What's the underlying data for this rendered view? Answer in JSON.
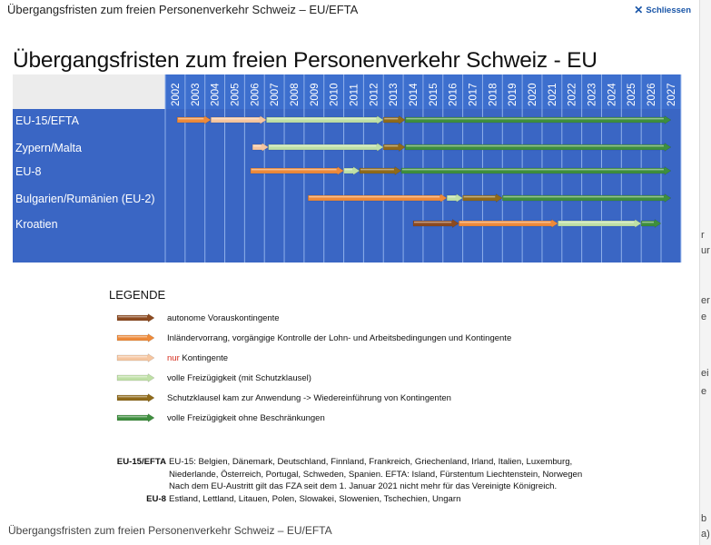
{
  "dialog": {
    "title": "Übergangsfristen zum freien Personenverkehr Schweiz – EU/EFTA",
    "close_label": "Schliessen",
    "caption": "Übergangsfristen zum freien Personenverkehr Schweiz – EU/EFTA"
  },
  "page_edge_texts": [
    "r",
    "ur",
    "er",
    "e",
    "ei",
    "e",
    "b",
    "a)"
  ],
  "chart": {
    "title": "Übergangsfristen zum freien Personenverkehr Schweiz - EU",
    "years": [
      "2002",
      "2003",
      "2004",
      "2005",
      "2006",
      "2007",
      "2008",
      "2009",
      "2010",
      "2011",
      "2012",
      "2013",
      "2014",
      "2015",
      "2016",
      "2017",
      "2018",
      "2019",
      "2020",
      "2021",
      "2022",
      "2023",
      "2024",
      "2025",
      "2026",
      "2027"
    ],
    "colors": {
      "header_blue": "#3d6fce",
      "body_blue": "#3a66c4",
      "header_gray": "#ececec",
      "gridline": "#8fb0ea",
      "brown": "#8c4a20",
      "orange": "#ee8a3a",
      "light_orange": "#f6c6a0",
      "light_green": "#bfe0a6",
      "olive": "#8f6a1a",
      "green": "#3e8e3e"
    }
  },
  "chart_data": {
    "type": "gantt",
    "title": "Übergangsfristen zum freien Personenverkehr Schweiz - EU",
    "x": [
      "2002",
      "2003",
      "2004",
      "2005",
      "2006",
      "2007",
      "2008",
      "2009",
      "2010",
      "2011",
      "2012",
      "2013",
      "2014",
      "2015",
      "2016",
      "2017",
      "2018",
      "2019",
      "2020",
      "2021",
      "2022",
      "2023",
      "2024",
      "2025",
      "2026",
      "2027"
    ],
    "rows": [
      {
        "name": "EU-15/EFTA",
        "segments": [
          {
            "status": "orange",
            "start": 2002.6,
            "end": 2004.3
          },
          {
            "status": "light_orange",
            "start": 2004.3,
            "end": 2007.1
          },
          {
            "status": "light_green",
            "start": 2007.1,
            "end": 2013.0
          },
          {
            "status": "olive",
            "start": 2013.0,
            "end": 2014.1
          },
          {
            "status": "green",
            "start": 2014.1,
            "end": 2027.5
          }
        ]
      },
      {
        "name": "Zypern/Malta",
        "segments": [
          {
            "status": "light_orange",
            "start": 2006.4,
            "end": 2007.2
          },
          {
            "status": "light_green",
            "start": 2007.2,
            "end": 2013.0
          },
          {
            "status": "olive",
            "start": 2013.0,
            "end": 2014.1
          },
          {
            "status": "green",
            "start": 2014.1,
            "end": 2027.5
          }
        ]
      },
      {
        "name": "EU-8",
        "segments": [
          {
            "status": "orange",
            "start": 2006.3,
            "end": 2011.0
          },
          {
            "status": "light_green",
            "start": 2011.0,
            "end": 2011.8
          },
          {
            "status": "olive",
            "start": 2011.8,
            "end": 2013.9
          },
          {
            "status": "green",
            "start": 2013.9,
            "end": 2027.5
          }
        ]
      },
      {
        "name": "Bulgarien/Rumänien (EU-2)",
        "segments": [
          {
            "status": "orange",
            "start": 2009.2,
            "end": 2016.2
          },
          {
            "status": "light_green",
            "start": 2016.2,
            "end": 2017.0
          },
          {
            "status": "olive",
            "start": 2017.0,
            "end": 2019.0
          },
          {
            "status": "green",
            "start": 2019.0,
            "end": 2027.5
          }
        ]
      },
      {
        "name": "Kroatien",
        "segments": [
          {
            "status": "brown",
            "start": 2014.5,
            "end": 2016.8
          },
          {
            "status": "orange",
            "start": 2016.8,
            "end": 2021.8
          },
          {
            "status": "light_green",
            "start": 2021.8,
            "end": 2026.0
          },
          {
            "status": "green",
            "start": 2026.0,
            "end": 2027.0
          }
        ]
      }
    ]
  },
  "legend": {
    "title": "LEGENDE",
    "items": [
      {
        "color": "brown",
        "label": "autonome Vorauskontingente"
      },
      {
        "color": "orange",
        "label": "Inländervorrang, vorgängige Kontrolle der Lohn- und Arbeitsbedingungen und Kontingente"
      },
      {
        "color": "light_orange",
        "label_red": "nur",
        "label": " Kontingente"
      },
      {
        "color": "light_green",
        "label": "volle Freizügigkeit (mit Schutzklausel)"
      },
      {
        "color": "olive",
        "label": "Schutzklausel kam zur Anwendung -> Wiedereinführung von Kontingenten"
      },
      {
        "color": "green",
        "label": "volle Freizügigkeit ohne Beschränkungen"
      }
    ]
  },
  "notes": [
    {
      "key": "EU-15/EFTA",
      "lines": [
        "EU-15: Belgien, Dänemark, Deutschland, Finnland, Frankreich, Griechenland, Irland, Italien, Luxemburg,",
        "Niederlande, Österreich, Portugal, Schweden, Spanien. EFTA: Island, Fürstentum Liechtenstein, Norwegen",
        "Nach dem EU-Austritt gilt das FZA seit dem 1. Januar 2021 nicht mehr für das Vereinigte Königreich."
      ]
    },
    {
      "key": "EU-8",
      "lines": [
        "Estland, Lettland, Litauen, Polen, Slowakei, Slowenien, Tschechien, Ungarn"
      ]
    }
  ]
}
